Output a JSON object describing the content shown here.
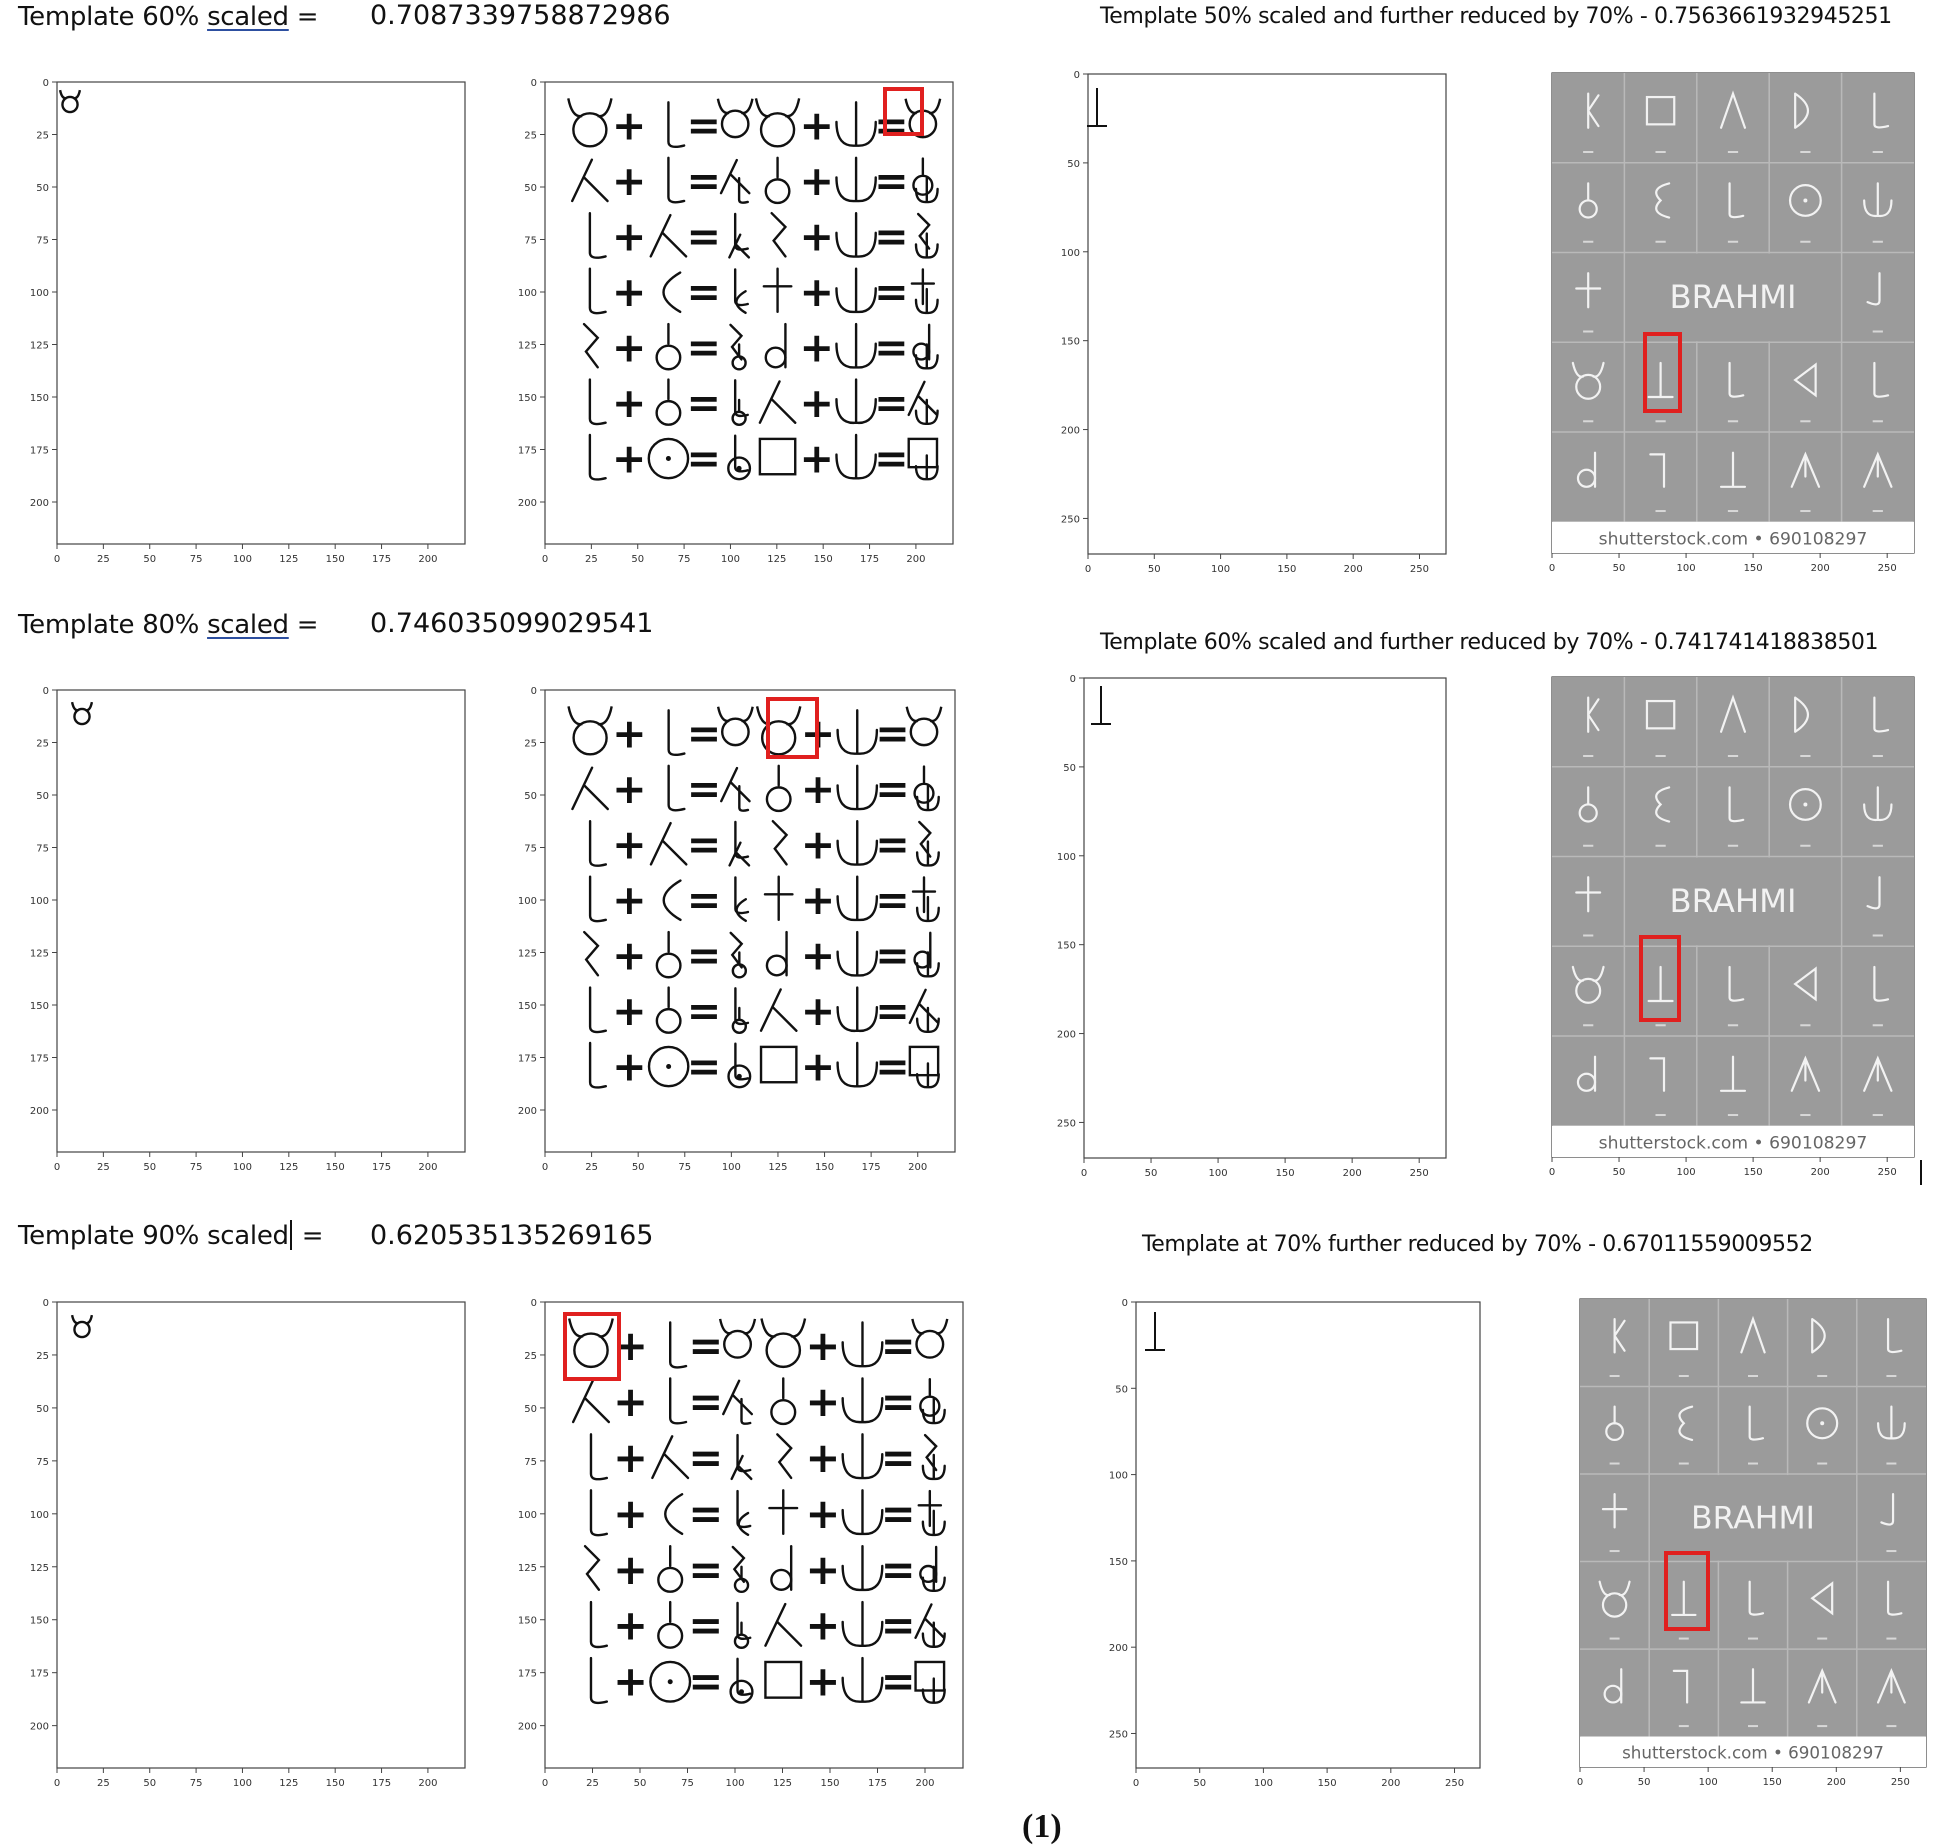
{
  "rows": [
    {
      "title_pre": "Template 60% ",
      "title_word": "scaled",
      "title_post": " =",
      "score": "0.7087339758872986",
      "right_title": "Template 50% scaled and further reduced by 70% - 0.7563661932945251"
    },
    {
      "title_pre": "Template 80% ",
      "title_word": "scaled",
      "title_post": " =",
      "score": "0.746035099029541",
      "right_title": "Template 60% scaled and further reduced by 70% - 0.741741418838501"
    },
    {
      "title_pre": "Template 90% ",
      "title_word": "scaled",
      "title_post": " =",
      "score": "0.620535135269165",
      "right_title": "Template at 70% further reduced by 70% - 0.67011559009552"
    }
  ],
  "axes": {
    "xticks_200": [
      "0",
      "25",
      "50",
      "75",
      "100",
      "125",
      "150",
      "175",
      "200"
    ],
    "yticks_200": [
      "0",
      "25",
      "50",
      "75",
      "100",
      "125",
      "150",
      "175",
      "200"
    ],
    "xticks_250": [
      "0",
      "50",
      "100",
      "150",
      "200",
      "250"
    ],
    "yticks_250": [
      "0",
      "50",
      "100",
      "150",
      "200",
      "250"
    ]
  },
  "chart_text": {
    "equation_symbols": [
      "Ծ",
      "+",
      "ᒪ",
      "=",
      "Ն"
    ],
    "brahmi_label": "BRAHMI",
    "shutterstock": "shutterstock.com • 690108297"
  },
  "caption": "(1)",
  "colors": {
    "highlight": "#e0201f",
    "grid_bg": "#9b9b9b",
    "grid_line": "#b9b9b9"
  }
}
